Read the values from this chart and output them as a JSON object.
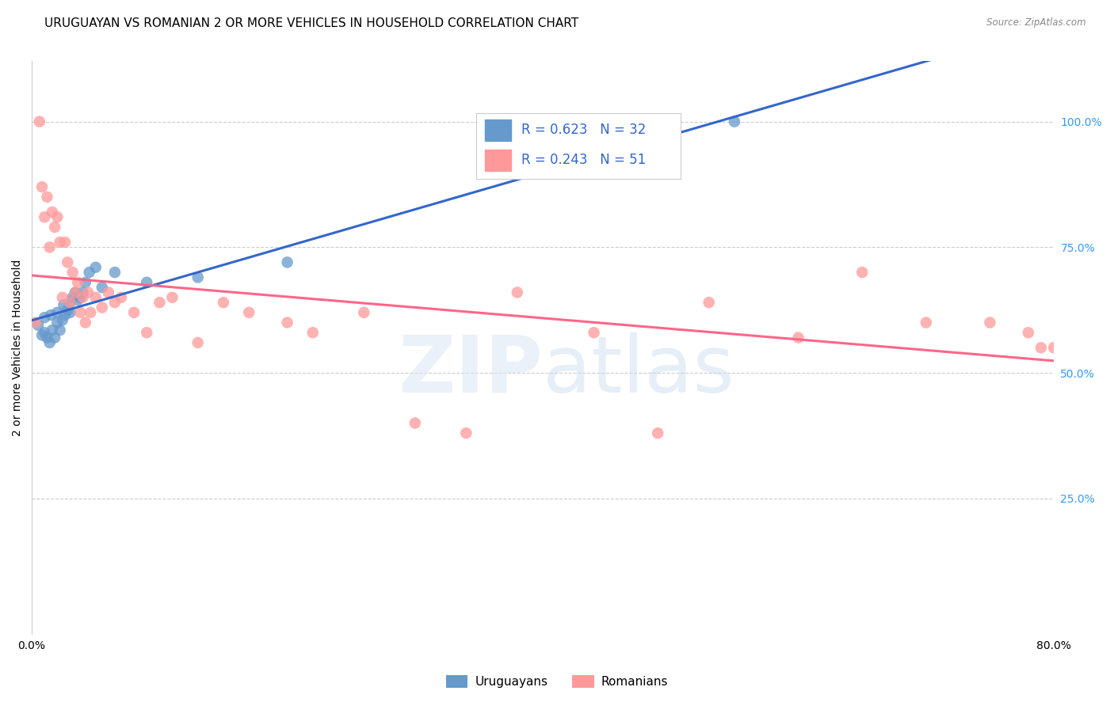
{
  "title": "URUGUAYAN VS ROMANIAN 2 OR MORE VEHICLES IN HOUSEHOLD CORRELATION CHART",
  "source": "Source: ZipAtlas.com",
  "ylabel": "2 or more Vehicles in Household",
  "ytick_labels": [
    "25.0%",
    "50.0%",
    "75.0%",
    "100.0%"
  ],
  "ytick_vals": [
    0.25,
    0.5,
    0.75,
    1.0
  ],
  "xlim": [
    0.0,
    0.8
  ],
  "ylim": [
    -0.02,
    1.12
  ],
  "uruguayan_x": [
    0.005,
    0.008,
    0.01,
    0.01,
    0.012,
    0.014,
    0.015,
    0.016,
    0.018,
    0.02,
    0.02,
    0.022,
    0.024,
    0.025,
    0.026,
    0.028,
    0.03,
    0.03,
    0.032,
    0.034,
    0.036,
    0.038,
    0.04,
    0.042,
    0.045,
    0.05,
    0.055,
    0.065,
    0.09,
    0.13,
    0.2,
    0.55
  ],
  "uruguayan_y": [
    0.595,
    0.575,
    0.58,
    0.61,
    0.57,
    0.56,
    0.615,
    0.585,
    0.57,
    0.62,
    0.6,
    0.585,
    0.605,
    0.635,
    0.615,
    0.625,
    0.64,
    0.62,
    0.65,
    0.66,
    0.645,
    0.65,
    0.66,
    0.68,
    0.7,
    0.71,
    0.67,
    0.7,
    0.68,
    0.69,
    0.72,
    1.0
  ],
  "romanian_x": [
    0.003,
    0.006,
    0.008,
    0.01,
    0.012,
    0.014,
    0.016,
    0.018,
    0.02,
    0.022,
    0.024,
    0.026,
    0.028,
    0.03,
    0.032,
    0.034,
    0.036,
    0.038,
    0.04,
    0.042,
    0.044,
    0.046,
    0.05,
    0.055,
    0.06,
    0.065,
    0.07,
    0.08,
    0.09,
    0.1,
    0.11,
    0.13,
    0.15,
    0.17,
    0.2,
    0.22,
    0.26,
    0.3,
    0.34,
    0.38,
    0.44,
    0.49,
    0.53,
    0.6,
    0.65,
    0.7,
    0.75,
    0.78,
    0.79,
    0.8,
    0.805
  ],
  "romanian_y": [
    0.6,
    1.0,
    0.87,
    0.81,
    0.85,
    0.75,
    0.82,
    0.79,
    0.81,
    0.76,
    0.65,
    0.76,
    0.72,
    0.64,
    0.7,
    0.66,
    0.68,
    0.62,
    0.65,
    0.6,
    0.66,
    0.62,
    0.65,
    0.63,
    0.66,
    0.64,
    0.65,
    0.62,
    0.58,
    0.64,
    0.65,
    0.56,
    0.64,
    0.62,
    0.6,
    0.58,
    0.62,
    0.4,
    0.38,
    0.66,
    0.58,
    0.38,
    0.64,
    0.57,
    0.7,
    0.6,
    0.6,
    0.58,
    0.55,
    0.55,
    0.56
  ],
  "uruguayan_color": "#6699CC",
  "romanian_color": "#FF9999",
  "uruguayan_line_color": "#3366CC",
  "romanian_line_color": "#FF6688",
  "legend_r_uruguayan": "0.623",
  "legend_n_uruguayan": "32",
  "legend_r_romanian": "0.243",
  "legend_n_romanian": "51",
  "background_color": "#ffffff",
  "grid_color": "#cccccc",
  "title_fontsize": 11,
  "axis_label_fontsize": 10,
  "tick_fontsize": 10,
  "legend_fontsize": 12
}
